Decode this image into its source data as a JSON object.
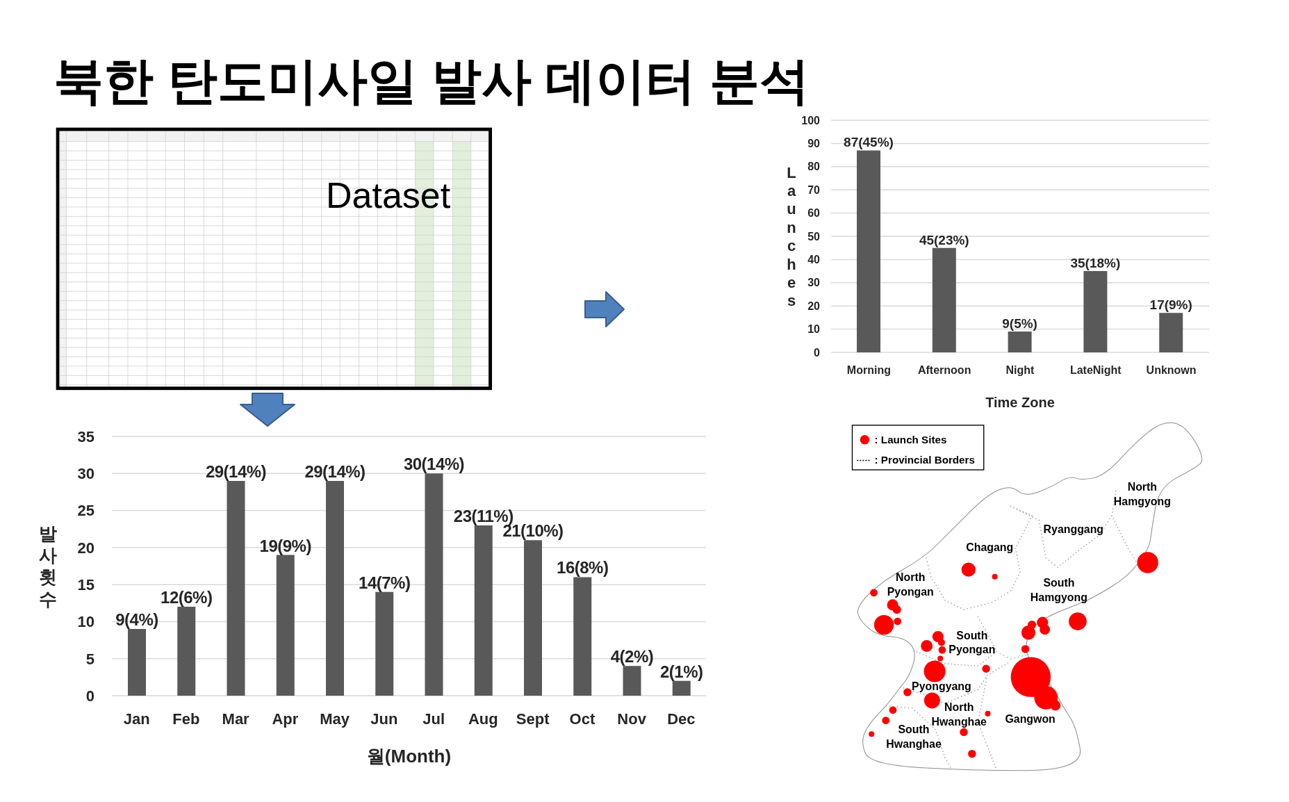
{
  "chart_data": [
    {
      "type": "other",
      "title": "북한 탄도미사일 발사 데이터 분석",
      "annotations": [
        "Dataset"
      ]
    },
    {
      "type": "bar",
      "categories": [
        "Morning",
        "Afternoon",
        "Night",
        "LateNight",
        "Unknown"
      ],
      "values": [
        87,
        45,
        9,
        35,
        17
      ],
      "color": "#595959",
      "ylim": [
        0,
        100
      ],
      "yticks": [
        0,
        10,
        20,
        30,
        40,
        50,
        60,
        70,
        80,
        90,
        100
      ],
      "grid": "y",
      "xlabel": "Time Zone",
      "ylabel": "Launches",
      "value_labels": [
        "87(45%)",
        "45(23%)",
        "9(5%)",
        "35(18%)",
        "17(9%)"
      ]
    },
    {
      "type": "bar",
      "categories": [
        "Jan",
        "Feb",
        "Mar",
        "Apr",
        "May",
        "Jun",
        "Jul",
        "Aug",
        "Sept",
        "Oct",
        "Nov",
        "Dec"
      ],
      "values": [
        9,
        12,
        29,
        19,
        29,
        14,
        30,
        23,
        21,
        16,
        4,
        2
      ],
      "color": "#595959",
      "ylim": [
        0,
        35
      ],
      "yticks": [
        0,
        5,
        10,
        15,
        20,
        25,
        30,
        35
      ],
      "grid": "y",
      "xlabel": "월(Month)",
      "ylabel": "발사횟수",
      "value_labels": [
        "9(4%)",
        "12(6%)",
        "29(14%)",
        "19(9%)",
        "29(14%)",
        "14(7%)",
        "30(14%)",
        "23(11%)",
        "21(10%)",
        "16(8%)",
        "4(2%)",
        "2(1%)"
      ]
    },
    {
      "type": "other",
      "annotations": [
        ": Launch Sites",
        ": Provincial Borders",
        "North Hamgyong",
        "Ryanggang",
        "Chagang",
        "North Pyongan",
        "South Hamgyong",
        "South Pyongan",
        "Pyongyang",
        "North Hwanghae",
        "Gangwon",
        "South Hwanghae"
      ]
    }
  ]
}
